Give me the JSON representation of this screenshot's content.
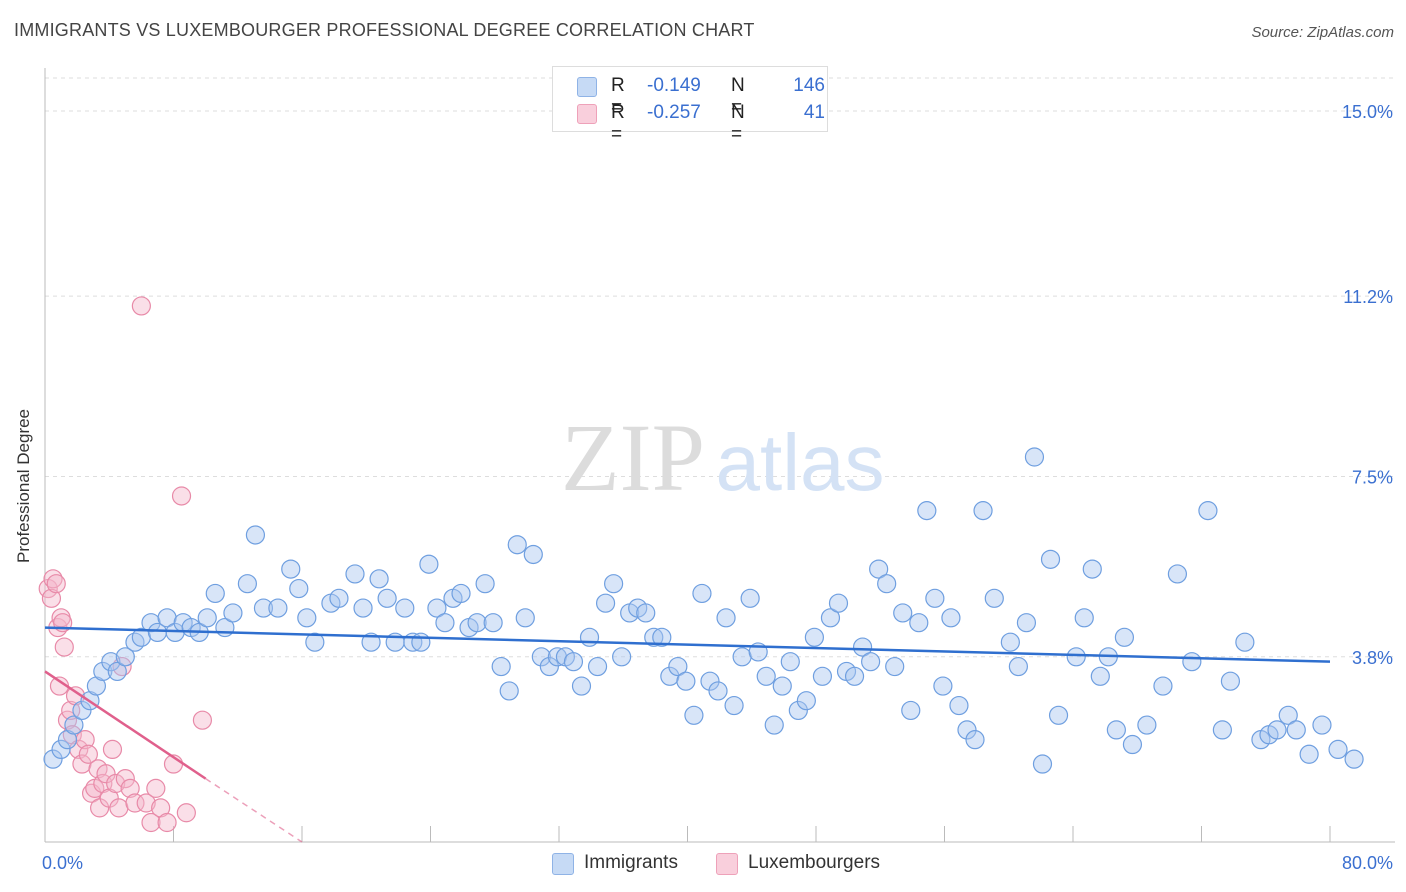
{
  "header": {
    "title": "IMMIGRANTS VS LUXEMBOURGER PROFESSIONAL DEGREE CORRELATION CHART",
    "source": "Source: ZipAtlas.com"
  },
  "watermark": {
    "zip": "ZIP",
    "atlas": "atlas"
  },
  "legend_top": [
    {
      "r_label": "R =",
      "r_value": "-0.149",
      "n_label": "N =",
      "n_value": "146",
      "color": "#a8c6f0"
    },
    {
      "r_label": "R =",
      "r_value": "-0.257",
      "n_label": "N =",
      "n_value": "41",
      "color": "#f5b8cb"
    }
  ],
  "colors": {
    "immigrants_fill": "#a8c6f0",
    "immigrants_stroke": "#6f9fe0",
    "immigrants_line": "#2f6fcf",
    "lux_fill": "#f5b8cb",
    "lux_stroke": "#e88aa8",
    "lux_line": "#e0608c",
    "tick_label": "#3a6fd0",
    "grid": "#dddddd"
  },
  "chart_data": {
    "type": "scatter",
    "title": "IMMIGRANTS VS LUXEMBOURGER PROFESSIONAL DEGREE CORRELATION CHART",
    "xlabel": "",
    "ylabel": "Professional Degree",
    "xlim": [
      0,
      80
    ],
    "ylim": [
      0,
      15.8
    ],
    "x_tick_labels": [
      "0.0%",
      "80.0%"
    ],
    "y_ticks": [
      3.8,
      7.5,
      11.2,
      15.0
    ],
    "y_tick_labels": [
      "3.8%",
      "7.5%",
      "11.2%",
      "15.0%"
    ],
    "grid": true,
    "legend_position": "bottom",
    "series": [
      {
        "name": "Immigrants",
        "trend": {
          "x": [
            0,
            80
          ],
          "y": [
            4.4,
            3.7
          ]
        },
        "points": [
          [
            0.5,
            1.7
          ],
          [
            1.0,
            1.9
          ],
          [
            1.4,
            2.1
          ],
          [
            1.8,
            2.4
          ],
          [
            2.3,
            2.7
          ],
          [
            2.8,
            2.9
          ],
          [
            3.2,
            3.2
          ],
          [
            3.6,
            3.5
          ],
          [
            4.1,
            3.7
          ],
          [
            4.5,
            3.5
          ],
          [
            5.0,
            3.8
          ],
          [
            5.6,
            4.1
          ],
          [
            6.0,
            4.2
          ],
          [
            6.6,
            4.5
          ],
          [
            7.0,
            4.3
          ],
          [
            7.6,
            4.6
          ],
          [
            8.1,
            4.3
          ],
          [
            8.6,
            4.5
          ],
          [
            9.1,
            4.4
          ],
          [
            9.6,
            4.3
          ],
          [
            10.1,
            4.6
          ],
          [
            10.6,
            5.1
          ],
          [
            11.2,
            4.4
          ],
          [
            11.7,
            4.7
          ],
          [
            12.6,
            5.3
          ],
          [
            13.1,
            6.3
          ],
          [
            13.6,
            4.8
          ],
          [
            14.5,
            4.8
          ],
          [
            15.3,
            5.6
          ],
          [
            15.8,
            5.2
          ],
          [
            16.3,
            4.6
          ],
          [
            16.8,
            4.1
          ],
          [
            17.8,
            4.9
          ],
          [
            18.3,
            5.0
          ],
          [
            19.3,
            5.5
          ],
          [
            19.8,
            4.8
          ],
          [
            20.3,
            4.1
          ],
          [
            20.8,
            5.4
          ],
          [
            21.3,
            5.0
          ],
          [
            21.8,
            4.1
          ],
          [
            22.4,
            4.8
          ],
          [
            22.9,
            4.1
          ],
          [
            23.4,
            4.1
          ],
          [
            23.9,
            5.7
          ],
          [
            24.4,
            4.8
          ],
          [
            24.9,
            4.5
          ],
          [
            25.4,
            5.0
          ],
          [
            25.9,
            5.1
          ],
          [
            26.4,
            4.4
          ],
          [
            26.9,
            4.5
          ],
          [
            27.4,
            5.3
          ],
          [
            27.9,
            4.5
          ],
          [
            28.4,
            3.6
          ],
          [
            28.9,
            3.1
          ],
          [
            29.4,
            6.1
          ],
          [
            29.9,
            4.6
          ],
          [
            30.4,
            5.9
          ],
          [
            30.9,
            3.8
          ],
          [
            31.4,
            3.6
          ],
          [
            31.9,
            3.8
          ],
          [
            32.4,
            3.8
          ],
          [
            32.9,
            3.7
          ],
          [
            33.4,
            3.2
          ],
          [
            33.9,
            4.2
          ],
          [
            34.4,
            3.6
          ],
          [
            34.9,
            4.9
          ],
          [
            35.4,
            5.3
          ],
          [
            35.9,
            3.8
          ],
          [
            36.4,
            4.7
          ],
          [
            36.9,
            4.8
          ],
          [
            37.4,
            4.7
          ],
          [
            37.9,
            4.2
          ],
          [
            38.4,
            4.2
          ],
          [
            38.9,
            3.4
          ],
          [
            39.4,
            3.6
          ],
          [
            39.9,
            3.3
          ],
          [
            40.4,
            2.6
          ],
          [
            40.9,
            5.1
          ],
          [
            41.4,
            3.3
          ],
          [
            41.9,
            3.1
          ],
          [
            42.4,
            4.6
          ],
          [
            42.9,
            2.8
          ],
          [
            43.4,
            3.8
          ],
          [
            43.9,
            5.0
          ],
          [
            44.4,
            3.9
          ],
          [
            44.9,
            3.4
          ],
          [
            45.4,
            2.4
          ],
          [
            45.9,
            3.2
          ],
          [
            46.4,
            3.7
          ],
          [
            46.9,
            2.7
          ],
          [
            47.4,
            2.9
          ],
          [
            47.9,
            4.2
          ],
          [
            48.4,
            3.4
          ],
          [
            48.9,
            4.6
          ],
          [
            49.4,
            4.9
          ],
          [
            49.9,
            3.5
          ],
          [
            50.4,
            3.4
          ],
          [
            50.9,
            4.0
          ],
          [
            51.4,
            3.7
          ],
          [
            51.9,
            5.6
          ],
          [
            52.4,
            5.3
          ],
          [
            52.9,
            3.6
          ],
          [
            53.4,
            4.7
          ],
          [
            53.9,
            2.7
          ],
          [
            54.4,
            4.5
          ],
          [
            54.9,
            6.8
          ],
          [
            55.4,
            5.0
          ],
          [
            55.9,
            3.2
          ],
          [
            56.4,
            4.6
          ],
          [
            56.9,
            2.8
          ],
          [
            57.4,
            2.3
          ],
          [
            57.9,
            2.1
          ],
          [
            58.4,
            6.8
          ],
          [
            59.1,
            5.0
          ],
          [
            60.1,
            4.1
          ],
          [
            60.6,
            3.6
          ],
          [
            61.1,
            4.5
          ],
          [
            61.6,
            7.9
          ],
          [
            62.1,
            1.6
          ],
          [
            62.6,
            5.8
          ],
          [
            63.1,
            2.6
          ],
          [
            64.2,
            3.8
          ],
          [
            64.7,
            4.6
          ],
          [
            65.2,
            5.6
          ],
          [
            65.7,
            3.4
          ],
          [
            66.2,
            3.8
          ],
          [
            66.7,
            2.3
          ],
          [
            67.2,
            4.2
          ],
          [
            67.7,
            2.0
          ],
          [
            68.6,
            2.4
          ],
          [
            69.6,
            3.2
          ],
          [
            70.5,
            5.5
          ],
          [
            71.4,
            3.7
          ],
          [
            72.4,
            6.8
          ],
          [
            73.3,
            2.3
          ],
          [
            73.8,
            3.3
          ],
          [
            74.7,
            4.1
          ],
          [
            75.7,
            2.1
          ],
          [
            76.2,
            2.2
          ],
          [
            76.7,
            2.3
          ],
          [
            77.4,
            2.6
          ],
          [
            77.9,
            2.3
          ],
          [
            78.7,
            1.8
          ],
          [
            80.5,
            1.9
          ],
          [
            81.5,
            1.7
          ],
          [
            79.5,
            2.4
          ]
        ]
      },
      {
        "name": "Luxembourgers",
        "trend": {
          "x": [
            0,
            10
          ],
          "y": [
            3.5,
            1.3
          ]
        },
        "trend_extension": {
          "x": [
            10,
            16
          ],
          "y": [
            1.3,
            0.0
          ]
        },
        "points": [
          [
            0.2,
            5.2
          ],
          [
            0.4,
            5.0
          ],
          [
            0.5,
            5.4
          ],
          [
            0.7,
            5.3
          ],
          [
            0.8,
            4.4
          ],
          [
            0.9,
            3.2
          ],
          [
            1.0,
            4.6
          ],
          [
            1.1,
            4.5
          ],
          [
            1.2,
            4.0
          ],
          [
            1.4,
            2.5
          ],
          [
            1.6,
            2.7
          ],
          [
            1.7,
            2.2
          ],
          [
            1.9,
            3.0
          ],
          [
            2.1,
            1.9
          ],
          [
            2.3,
            1.6
          ],
          [
            2.5,
            2.1
          ],
          [
            2.7,
            1.8
          ],
          [
            2.9,
            1.0
          ],
          [
            3.1,
            1.1
          ],
          [
            3.3,
            1.5
          ],
          [
            3.4,
            0.7
          ],
          [
            3.6,
            1.2
          ],
          [
            3.8,
            1.4
          ],
          [
            4.0,
            0.9
          ],
          [
            4.2,
            1.9
          ],
          [
            4.4,
            1.2
          ],
          [
            4.6,
            0.7
          ],
          [
            4.8,
            3.6
          ],
          [
            5.0,
            1.3
          ],
          [
            5.3,
            1.1
          ],
          [
            5.6,
            0.8
          ],
          [
            6.0,
            11.0
          ],
          [
            6.3,
            0.8
          ],
          [
            6.6,
            0.4
          ],
          [
            6.9,
            1.1
          ],
          [
            7.2,
            0.7
          ],
          [
            7.6,
            0.4
          ],
          [
            8.0,
            1.6
          ],
          [
            8.5,
            7.1
          ],
          [
            8.8,
            0.6
          ],
          [
            9.8,
            2.5
          ]
        ]
      }
    ]
  },
  "legend_bottom": [
    {
      "label": "Immigrants",
      "color": "#a8c6f0"
    },
    {
      "label": "Luxembourgers",
      "color": "#f5b8cb"
    }
  ]
}
